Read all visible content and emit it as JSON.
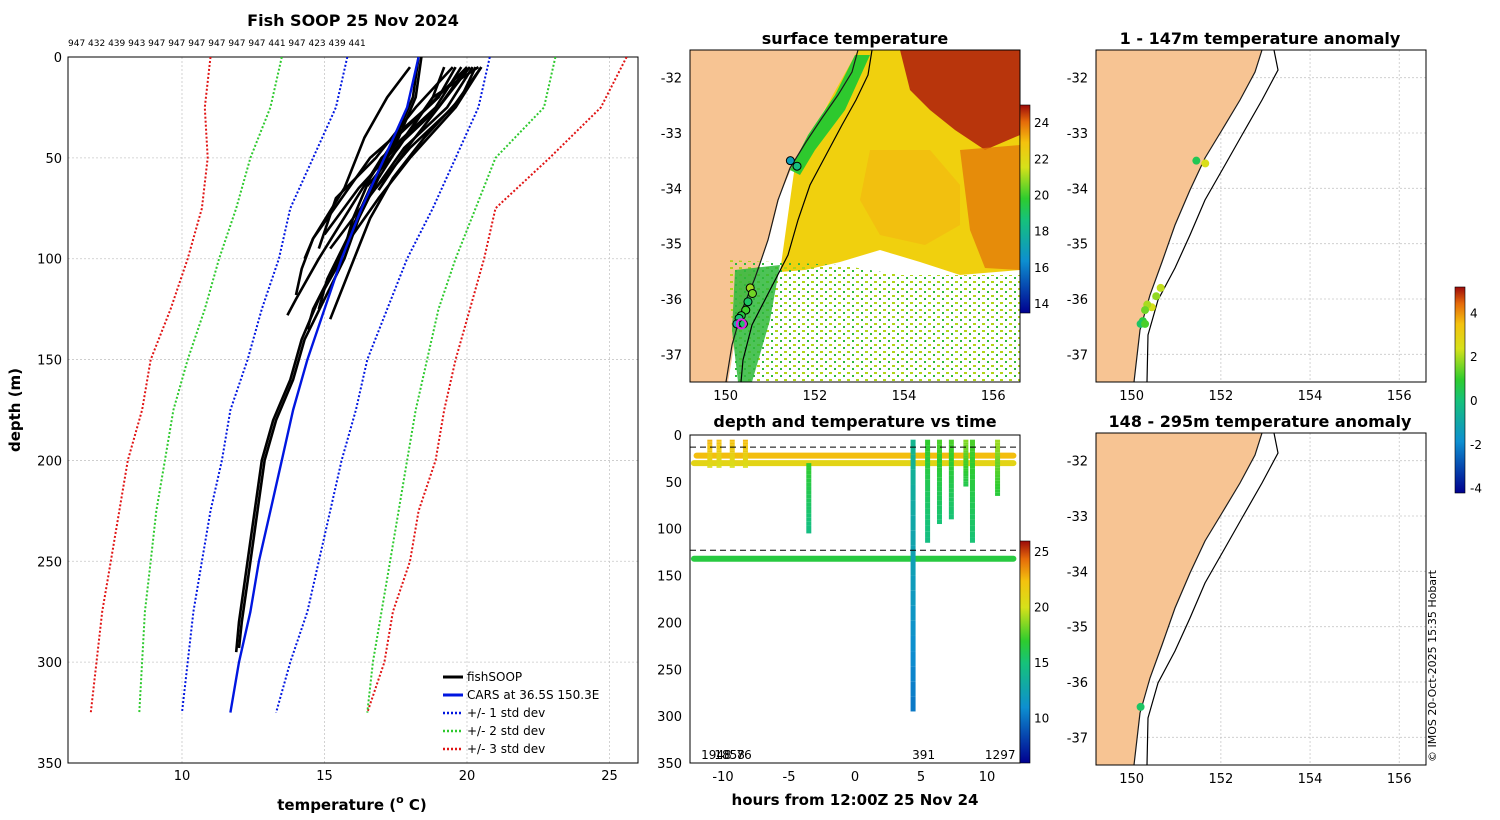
{
  "colors": {
    "land": "#f7c493",
    "grid": "#c8c8c8",
    "black": "#000000",
    "blue": "#0016e0",
    "green": "#2ec92e",
    "red": "#e01414",
    "coast": "#1a1a1a",
    "marker_magenta": "#e020e0"
  },
  "copyright": "© IMOS 20-Oct-2025 15:35 Hobart",
  "chart_data": [
    {
      "id": "profile",
      "type": "line",
      "title": "Fish SOOP 25 Nov 2024",
      "profile_ids": "947 432 439 943 947 947 947 947 947 947 441 947 423 439 441",
      "xlabel": "temperature (o C)",
      "xlabel_main": "temperature (",
      "xlabel_sup": "o",
      "xlabel_end": " C)",
      "ylabel": "depth (m)",
      "xlim": [
        6,
        26
      ],
      "ylim": [
        350,
        0
      ],
      "xticks": [
        10,
        15,
        20,
        25
      ],
      "yticks": [
        0,
        50,
        100,
        150,
        200,
        250,
        300,
        350
      ],
      "legend": [
        "fishSOOP",
        "CARS at 36.5S 150.3E",
        "+/- 1 std dev",
        "+/- 2 std dev",
        "+/- 3 std dev"
      ],
      "depth": [
        0,
        25,
        50,
        75,
        100,
        125,
        150,
        175,
        200,
        225,
        250,
        275,
        300,
        325
      ],
      "cars_mean": [
        18.3,
        17.9,
        17.1,
        16.3,
        15.6,
        15.0,
        14.4,
        13.9,
        13.5,
        13.1,
        12.7,
        12.4,
        12.0,
        11.7
      ],
      "std1_lo": [
        15.8,
        15.4,
        14.6,
        13.8,
        13.4,
        12.8,
        12.3,
        11.7,
        11.4,
        11.0,
        10.7,
        10.4,
        10.2,
        10.0
      ],
      "std1_hi": [
        20.8,
        20.4,
        19.6,
        18.8,
        17.9,
        17.2,
        16.5,
        16.1,
        15.6,
        15.2,
        14.8,
        14.4,
        13.8,
        13.3
      ],
      "std2_lo": [
        13.5,
        13.1,
        12.4,
        11.9,
        11.3,
        10.8,
        10.2,
        9.7,
        9.4,
        9.1,
        8.9,
        8.7,
        8.6,
        8.5
      ],
      "std2_hi": [
        23.1,
        22.7,
        21.0,
        20.3,
        19.6,
        19.0,
        18.6,
        18.2,
        17.9,
        17.6,
        17.3,
        17.0,
        16.7,
        16.5
      ],
      "std3_lo": [
        11.0,
        10.8,
        10.9,
        10.7,
        10.2,
        9.6,
        8.9,
        8.6,
        8.1,
        7.8,
        7.5,
        7.2,
        7.0,
        6.8
      ],
      "std3_hi": [
        25.6,
        24.7,
        22.9,
        21.0,
        20.6,
        20.1,
        19.6,
        19.2,
        18.9,
        18.3,
        18.0,
        17.4,
        17.1,
        16.5
      ],
      "fishsoop": [
        {
          "depth": [
            0,
            20,
            40,
            60,
            80,
            100,
            120,
            140,
            160,
            180,
            200,
            220,
            240,
            260,
            280,
            295
          ],
          "temp": [
            18.3,
            18.1,
            17.5,
            16.6,
            16.0,
            15.6,
            14.8,
            14.2,
            13.8,
            13.2,
            12.8,
            12.6,
            12.4,
            12.2,
            12.0,
            11.9
          ]
        },
        {
          "depth": [
            0,
            20,
            40,
            60,
            80,
            100,
            120,
            140,
            160,
            180,
            200,
            220,
            240,
            260,
            280,
            293
          ],
          "temp": [
            18.4,
            18.2,
            17.6,
            16.8,
            16.2,
            15.7,
            15.0,
            14.3,
            13.9,
            13.3,
            12.9,
            12.7,
            12.5,
            12.3,
            12.1,
            12.0
          ]
        },
        {
          "depth": [
            5,
            20,
            40,
            60,
            80,
            100,
            125,
            135
          ],
          "temp": [
            19.2,
            18.8,
            17.8,
            16.9,
            16.2,
            15.5,
            14.6,
            14.4
          ]
        },
        {
          "depth": [
            5,
            20,
            40,
            60,
            80,
            105,
            130
          ],
          "temp": [
            20.3,
            19.8,
            18.5,
            17.4,
            16.6,
            15.9,
            15.2
          ]
        },
        {
          "depth": [
            5,
            20,
            40,
            65,
            90,
            110,
            125
          ],
          "temp": [
            19.6,
            19.0,
            17.5,
            16.6,
            15.8,
            15.1,
            14.8
          ]
        },
        {
          "depth": [
            5,
            20,
            40,
            65,
            90,
            100
          ],
          "temp": [
            18.0,
            17.2,
            16.4,
            15.7,
            14.6,
            14.3
          ]
        },
        {
          "depth": [
            5,
            25,
            45,
            65,
            95
          ],
          "temp": [
            20.5,
            19.5,
            18.0,
            16.8,
            15.2
          ]
        },
        {
          "depth": [
            5,
            25,
            45,
            65,
            88
          ],
          "temp": [
            20.0,
            19.0,
            17.5,
            16.2,
            15.0
          ]
        },
        {
          "depth": [
            5,
            25,
            50,
            70,
            95
          ],
          "temp": [
            19.5,
            18.2,
            16.8,
            15.4,
            14.8
          ]
        },
        {
          "depth": [
            5,
            25,
            45,
            65
          ],
          "temp": [
            20.2,
            19.3,
            17.8,
            16.8
          ]
        },
        {
          "depth": [
            5,
            20,
            45,
            64
          ],
          "temp": [
            20.4,
            18.8,
            17.6,
            16.5
          ]
        },
        {
          "depth": [
            5,
            25,
            50,
            75,
            100,
            120,
            128
          ],
          "temp": [
            19.8,
            18.9,
            17.0,
            15.9,
            14.8,
            14.0,
            13.7
          ]
        },
        {
          "depth": [
            5,
            25,
            50,
            70,
            90,
            105,
            118
          ],
          "temp": [
            20.0,
            18.6,
            16.6,
            15.6,
            14.6,
            14.2,
            14.0
          ]
        },
        {
          "depth": [
            5,
            25,
            50,
            70,
            92
          ],
          "temp": [
            20.5,
            19.6,
            18.0,
            16.9,
            15.8
          ]
        },
        {
          "depth": [
            5,
            25,
            45,
            66
          ],
          "temp": [
            20.1,
            19.0,
            17.9,
            16.9
          ]
        }
      ]
    },
    {
      "id": "sst",
      "type": "heatmap",
      "title": "surface temperature",
      "xlim": [
        149.2,
        156.6
      ],
      "ylim": [
        -37.5,
        -31.5
      ],
      "xticks": [
        150,
        152,
        154,
        156
      ],
      "yticks": [
        -32,
        -33,
        -34,
        -35,
        -36,
        -37
      ],
      "colorbar": {
        "min": 13.5,
        "max": 25,
        "ticks": [
          14,
          16,
          18,
          20,
          22,
          24
        ]
      },
      "station_lon": [
        151.45,
        151.6,
        150.55,
        150.6,
        150.5,
        150.45,
        150.35,
        150.3,
        150.25,
        150.4
      ],
      "station_lat": [
        -33.5,
        -33.6,
        -35.8,
        -35.9,
        -36.05,
        -36.2,
        -36.3,
        -36.35,
        -36.45,
        -36.45
      ],
      "station_sst": [
        17.0,
        18.5,
        21.0,
        20.5,
        19.0,
        20.0,
        19.5,
        18.8,
        18.0,
        19.0
      ]
    },
    {
      "id": "anom1",
      "type": "scatter",
      "title": "1 - 147m temperature anomaly",
      "xlim": [
        149.2,
        156.6
      ],
      "ylim": [
        -37.5,
        -31.5
      ],
      "xticks": [
        150,
        152,
        154,
        156
      ],
      "yticks": [
        -32,
        -33,
        -34,
        -35,
        -36,
        -37
      ],
      "lon": [
        151.45,
        151.65,
        150.65,
        150.55,
        150.45,
        150.35,
        150.3,
        150.25,
        150.2,
        150.3
      ],
      "lat": [
        -33.5,
        -33.55,
        -35.8,
        -35.95,
        -36.15,
        -36.1,
        -36.2,
        -36.4,
        -36.45,
        -36.45
      ],
      "anom": [
        0.5,
        2.5,
        2.2,
        1.8,
        2.4,
        2.0,
        1.5,
        0.8,
        0.3,
        1.2
      ]
    },
    {
      "id": "anom2",
      "type": "scatter",
      "title": "148 - 295m temperature anomaly",
      "xlim": [
        149.2,
        156.6
      ],
      "ylim": [
        -37.5,
        -31.5
      ],
      "xticks": [
        150,
        152,
        154,
        156
      ],
      "yticks": [
        -32,
        -33,
        -34,
        -35,
        -36,
        -37
      ],
      "lon": [
        150.2
      ],
      "lat": [
        -36.45
      ],
      "anom": [
        0.3
      ],
      "colorbar": {
        "min": -4.2,
        "max": 5.2,
        "ticks": [
          -4,
          -2,
          0,
          2,
          4
        ]
      }
    },
    {
      "id": "timeseries",
      "type": "scatter",
      "title": "depth and temperature vs time",
      "xlabel": "hours from 12:00Z 25 Nov 24",
      "xlim": [
        -12.5,
        12.5
      ],
      "ylim": [
        350,
        0
      ],
      "xticks": [
        -10,
        -5,
        0,
        5,
        10
      ],
      "yticks": [
        0,
        50,
        100,
        150,
        200,
        250,
        300,
        350
      ],
      "dashed_depths": [
        13,
        123
      ],
      "annotations": [
        {
          "x": -10.5,
          "text": "1948"
        },
        {
          "x": -9.5,
          "text": "1858"
        },
        {
          "x": -8.4,
          "text": "76"
        },
        {
          "x": 5.2,
          "text": "391"
        },
        {
          "x": 11.0,
          "text": "1297"
        }
      ],
      "colorbar": {
        "min": 6,
        "max": 26,
        "ticks": [
          10,
          15,
          20,
          25
        ]
      },
      "horizontal_tracks": [
        {
          "t0": -12.2,
          "t1": 12.0,
          "depth": 30,
          "temp": 21.0
        },
        {
          "t0": -12.0,
          "t1": 12.0,
          "depth": 22,
          "temp": 22.5
        },
        {
          "t0": -12.2,
          "t1": 12.0,
          "depth": 132,
          "temp": 16.5
        }
      ],
      "dives": [
        {
          "t": -11.0,
          "d0": 5,
          "d1": 35,
          "temp": 22.8
        },
        {
          "t": -10.3,
          "d0": 5,
          "d1": 35,
          "temp": 22.5
        },
        {
          "t": -9.3,
          "d0": 5,
          "d1": 35,
          "temp": 22.5
        },
        {
          "t": -8.3,
          "d0": 5,
          "d1": 35,
          "temp": 22.6
        },
        {
          "t": -3.5,
          "d0": 30,
          "d1": 105,
          "temp": 17.0
        },
        {
          "t": 4.4,
          "d0": 5,
          "d1": 295,
          "temp": 14.0
        },
        {
          "t": 5.5,
          "d0": 5,
          "d1": 115,
          "temp": 17.0
        },
        {
          "t": 6.4,
          "d0": 5,
          "d1": 95,
          "temp": 17.5
        },
        {
          "t": 7.3,
          "d0": 5,
          "d1": 90,
          "temp": 17.5
        },
        {
          "t": 8.4,
          "d0": 5,
          "d1": 55,
          "temp": 18.5
        },
        {
          "t": 8.9,
          "d0": 5,
          "d1": 115,
          "temp": 17.5
        },
        {
          "t": 10.8,
          "d0": 5,
          "d1": 65,
          "temp": 19.0
        }
      ]
    }
  ]
}
